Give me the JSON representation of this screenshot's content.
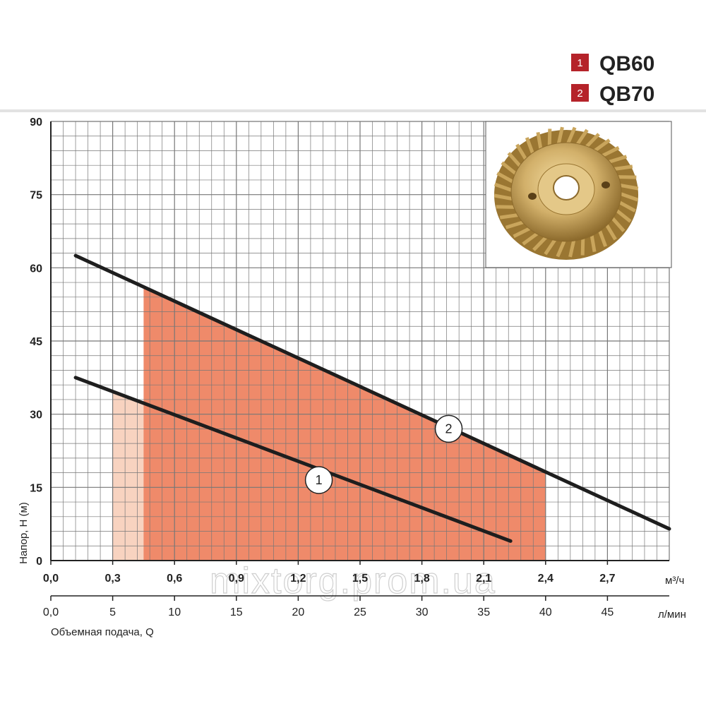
{
  "chart_data": {
    "type": "line",
    "title": "",
    "ylabel": "Напор, H (м)",
    "xlabel": "Объемная подача, Q",
    "x_unit": "м³/ч",
    "x2_unit": "л/мин",
    "ylim": [
      0,
      90
    ],
    "xlim": [
      0,
      3.0
    ],
    "y_ticks": [
      "0",
      "15",
      "30",
      "45",
      "60",
      "75",
      "90"
    ],
    "y_tick_values": [
      0,
      15,
      30,
      45,
      60,
      75,
      90
    ],
    "x_ticks": [
      "0,0",
      "0,3",
      "0,6",
      "0,9",
      "1,2",
      "1,5",
      "1,8",
      "2,1",
      "2,4",
      "2,7"
    ],
    "x_tick_values": [
      0,
      0.3,
      0.6,
      0.9,
      1.2,
      1.5,
      1.8,
      2.1,
      2.4,
      2.7
    ],
    "x2_ticks": [
      "0,0",
      "5",
      "10",
      "15",
      "20",
      "25",
      "30",
      "35",
      "40",
      "45"
    ],
    "x2_tick_values": [
      0,
      5,
      10,
      15,
      20,
      25,
      30,
      35,
      40,
      45
    ],
    "grid": true,
    "legend_position": "top-right",
    "series": [
      {
        "id": "1",
        "name": "QB60",
        "x": [
          0.12,
          2.23
        ],
        "y": [
          37.5,
          4.0
        ],
        "band": {
          "x_from": 0.3,
          "x_to": 1.5,
          "color": "#f8d3c0"
        }
      },
      {
        "id": "2",
        "name": "QB70",
        "x": [
          0.12,
          3.0
        ],
        "y": [
          62.5,
          6.5
        ],
        "band": {
          "x_from": 0.45,
          "x_to": 2.4,
          "color": "#ef8a6a"
        }
      }
    ],
    "curve_labels": [
      {
        "text": "1",
        "x": 1.3,
        "y": 16.5
      },
      {
        "text": "2",
        "x": 1.93,
        "y": 27.0
      }
    ],
    "watermark": "mixtorg.prom.ua"
  },
  "colors": {
    "line": "#1e1e1e",
    "grid": "#777777",
    "legend_box": "#b5232a"
  }
}
